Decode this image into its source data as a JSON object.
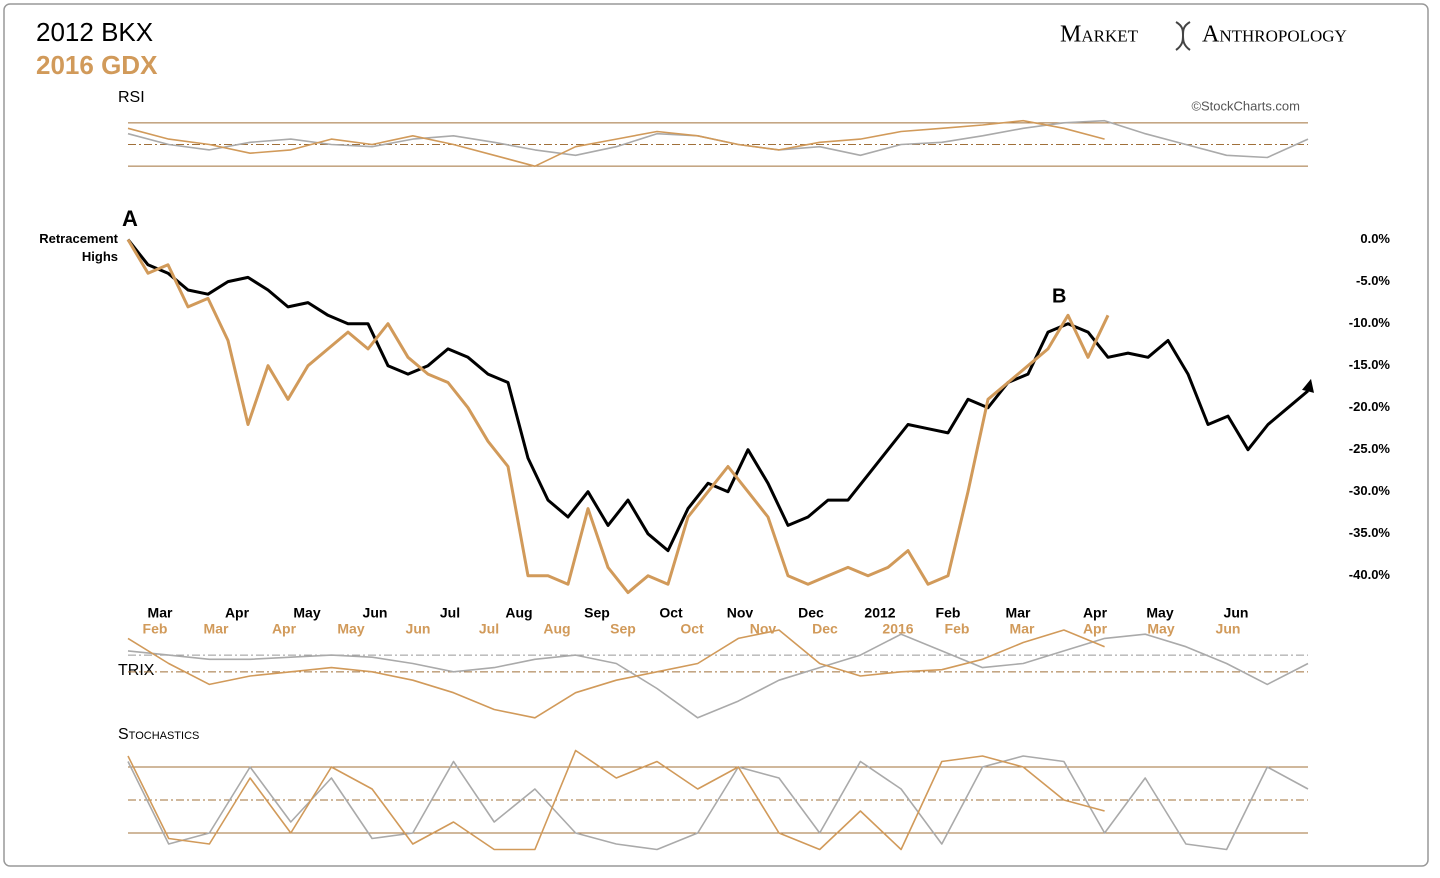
{
  "brand": [
    "Market",
    "Anthropology"
  ],
  "source": "©StockCharts.com",
  "chart_data": [
    {
      "type": "line",
      "series": [
        {
          "name": "2012 BKX",
          "color": "#000000",
          "values": [
            0,
            -3,
            -4,
            -6,
            -6.5,
            -5,
            -4.5,
            -6,
            -8,
            -7.5,
            -9,
            -10,
            -10,
            -15,
            -16,
            -15,
            -13,
            -14,
            -16,
            -17,
            -26,
            -31,
            -33,
            -30,
            -34,
            -31,
            -35,
            -37,
            -32,
            -29,
            -30,
            -25,
            -29,
            -34,
            -33,
            -31,
            -31,
            -28,
            -25,
            -22,
            -22.5,
            -23,
            -19,
            -20,
            -17,
            -16,
            -11,
            -10,
            -11,
            -14,
            -13.5,
            -14,
            -12,
            -16,
            -22,
            -21,
            -25,
            -22,
            -20,
            -18
          ]
        },
        {
          "name": "2016 GDX",
          "color": "#d19a5a",
          "values": [
            0,
            -4,
            -3,
            -8,
            -7,
            -12,
            -22,
            -15,
            -19,
            -15,
            -13,
            -11,
            -13,
            -10,
            -14,
            -16,
            -17,
            -20,
            -24,
            -27,
            -40,
            -40,
            -41,
            -32,
            -39,
            -42,
            -40,
            -41,
            -33,
            -30,
            -27,
            -30,
            -33,
            -40,
            -41,
            -40,
            -39,
            -40,
            -39,
            -37,
            -41,
            -40,
            -30,
            -19,
            -17,
            -15,
            -13,
            -9,
            -14,
            -9
          ]
        }
      ],
      "xlim": [
        0,
        59
      ],
      "xticks": [
        {
          "value": 1.6,
          "label": "Mar"
        },
        {
          "value": 5.45,
          "label": "Apr"
        },
        {
          "value": 8.95,
          "label": "May"
        },
        {
          "value": 12.35,
          "label": "Jun"
        },
        {
          "value": 16.1,
          "label": "Jul"
        },
        {
          "value": 19.55,
          "label": "Aug"
        },
        {
          "value": 23.45,
          "label": "Sep"
        },
        {
          "value": 27.15,
          "label": "Oct"
        },
        {
          "value": 30.6,
          "label": "Nov"
        },
        {
          "value": 34.15,
          "label": "Dec"
        },
        {
          "value": 37.6,
          "label": "2012"
        },
        {
          "value": 41,
          "label": "Feb"
        },
        {
          "value": 44.5,
          "label": "Mar"
        },
        {
          "value": 48.35,
          "label": "Apr"
        },
        {
          "value": 51.6,
          "label": "May"
        },
        {
          "value": 55.4,
          "label": "Jun"
        }
      ],
      "x2ticks": [
        {
          "value": 1.35,
          "label": "Feb"
        },
        {
          "value": 4.4,
          "label": "Mar"
        },
        {
          "value": 7.8,
          "label": "Apr"
        },
        {
          "value": 11.15,
          "label": "May"
        },
        {
          "value": 14.5,
          "label": "Jun"
        },
        {
          "value": 18.05,
          "label": "Jul"
        },
        {
          "value": 21.45,
          "label": "Aug"
        },
        {
          "value": 24.75,
          "label": "Sep"
        },
        {
          "value": 28.2,
          "label": "Oct"
        },
        {
          "value": 31.75,
          "label": "Nov"
        },
        {
          "value": 34.85,
          "label": "Dec"
        },
        {
          "value": 38.5,
          "label": "2016"
        },
        {
          "value": 41.45,
          "label": "Feb"
        },
        {
          "value": 44.7,
          "label": "Mar"
        },
        {
          "value": 48.35,
          "label": "Apr"
        },
        {
          "value": 51.65,
          "label": "May"
        },
        {
          "value": 55,
          "label": "Jun"
        }
      ],
      "ylim": [
        -43,
        4
      ],
      "yticks": [
        {
          "value": 0,
          "label": "0.0%"
        },
        {
          "value": -5,
          "label": "-5.0%"
        },
        {
          "value": -10,
          "label": "-10.0%"
        },
        {
          "value": -15,
          "label": "-15.0%"
        },
        {
          "value": -20,
          "label": "-20.0%"
        },
        {
          "value": -25,
          "label": "-25.0%"
        },
        {
          "value": -30,
          "label": "-30.0%"
        },
        {
          "value": -35,
          "label": "-35.0%"
        },
        {
          "value": -40,
          "label": "-40.0%"
        }
      ],
      "annotations": [
        {
          "text": "A"
        },
        {
          "text": "Retracement Highs"
        },
        {
          "text": "B"
        }
      ]
    },
    {
      "type": "line",
      "title": "RSI",
      "series": [
        {
          "color": "#aaaaaa",
          "values": [
            60,
            50,
            45,
            52,
            55,
            50,
            48,
            55,
            58,
            52,
            45,
            40,
            48,
            60,
            58,
            50,
            45,
            48,
            40,
            50,
            52,
            58,
            65,
            70,
            72,
            60,
            50,
            40,
            38,
            55
          ]
        },
        {
          "color": "#d19a5a",
          "values": [
            65,
            55,
            50,
            42,
            45,
            55,
            50,
            58,
            50,
            40,
            30,
            48,
            55,
            62,
            58,
            50,
            45,
            52,
            55,
            62,
            65,
            68,
            72,
            65,
            55
          ]
        }
      ],
      "xlim": [
        0,
        29
      ],
      "ylim": [
        20,
        80
      ],
      "levels": [
        70,
        50,
        30
      ]
    },
    {
      "type": "line",
      "title": "TRIX",
      "series": [
        {
          "color": "#aaaaaa",
          "values": [
            0.5,
            0.4,
            0.3,
            0.3,
            0.35,
            0.4,
            0.35,
            0.2,
            0,
            0.1,
            0.3,
            0.4,
            0.2,
            -0.4,
            -1.1,
            -0.7,
            -0.2,
            0.1,
            0.4,
            0.9,
            0.5,
            0.1,
            0.2,
            0.5,
            0.8,
            0.9,
            0.6,
            0.2,
            -0.3,
            0.2
          ]
        },
        {
          "color": "#d19a5a",
          "values": [
            0.8,
            0.2,
            -0.3,
            -0.1,
            0,
            0.1,
            0,
            -0.2,
            -0.5,
            -0.9,
            -1.1,
            -0.5,
            -0.2,
            0,
            0.2,
            0.8,
            1.0,
            0.2,
            -0.1,
            0,
            0.05,
            0.3,
            0.7,
            1.0,
            0.6
          ]
        }
      ],
      "xlim": [
        0,
        29
      ],
      "ylim": [
        -1.2,
        1
      ],
      "levels": [
        0.4,
        0
      ]
    },
    {
      "type": "line",
      "title": "Stochastics",
      "series": [
        {
          "color": "#aaaaaa",
          "values": [
            85,
            10,
            20,
            80,
            30,
            70,
            15,
            20,
            85,
            30,
            60,
            20,
            10,
            5,
            20,
            80,
            70,
            20,
            85,
            60,
            10,
            80,
            90,
            85,
            20,
            70,
            10,
            5,
            80,
            60
          ]
        },
        {
          "color": "#d19a5a",
          "values": [
            90,
            15,
            10,
            70,
            20,
            80,
            60,
            10,
            30,
            5,
            5,
            95,
            70,
            85,
            60,
            80,
            20,
            5,
            40,
            5,
            85,
            90,
            80,
            50,
            40
          ]
        }
      ],
      "xlim": [
        0,
        29
      ],
      "ylim": [
        0,
        100
      ],
      "levels": [
        80,
        50,
        20
      ]
    }
  ]
}
